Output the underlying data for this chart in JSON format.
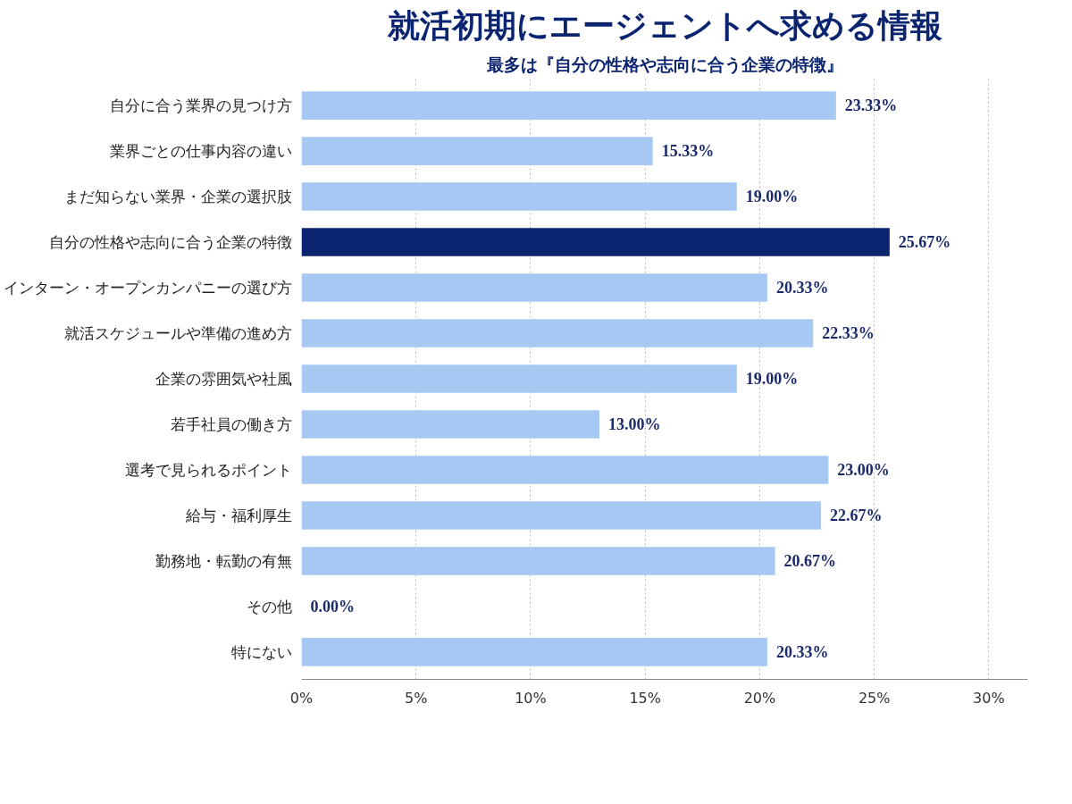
{
  "chart_data": {
    "type": "bar",
    "orientation": "horizontal",
    "title": "就活初期にエージェントへ求める情報",
    "subtitle": "最多は『自分の性格や志向に合う企業の特徴』",
    "categories": [
      "自分に合う業界の見つけ方",
      "業界ごとの仕事内容の違い",
      "まだ知らない業界・企業の選択肢",
      "自分の性格や志向に合う企業の特徴",
      "インターン・オープンカンパニーの選び方",
      "就活スケジュールや準備の進め方",
      "企業の雰囲気や社風",
      "若手社員の働き方",
      "選考で見られるポイント",
      "給与・福利厚生",
      "勤務地・転勤の有無",
      "その他",
      "特にない"
    ],
    "values": [
      23.33,
      15.33,
      19.0,
      25.67,
      20.33,
      22.33,
      19.0,
      13.0,
      23.0,
      22.67,
      20.67,
      0.0,
      20.33
    ],
    "value_labels": [
      "23.33%",
      "15.33%",
      "19.00%",
      "25.67%",
      "20.33%",
      "22.33%",
      "19.00%",
      "13.00%",
      "23.00%",
      "22.67%",
      "20.67%",
      "0.00%",
      "20.33%"
    ],
    "colors": [
      "#a8c8f4",
      "#a8c8f4",
      "#a8c8f4",
      "#0b2470",
      "#a8c8f4",
      "#a8c8f4",
      "#a8c8f4",
      "#a8c8f4",
      "#a8c8f4",
      "#a8c8f4",
      "#a8c8f4",
      "#a8c8f4",
      "#a8c8f4"
    ],
    "xlim": [
      0,
      31.7
    ],
    "xticks": [
      {
        "value": 0,
        "label": "0%"
      },
      {
        "value": 5,
        "label": "5%"
      },
      {
        "value": 10,
        "label": "10%"
      },
      {
        "value": 15,
        "label": "15%"
      },
      {
        "value": 20,
        "label": "20%"
      },
      {
        "value": 25,
        "label": "25%"
      },
      {
        "value": 30,
        "label": "30%"
      }
    ],
    "grid": "x"
  }
}
